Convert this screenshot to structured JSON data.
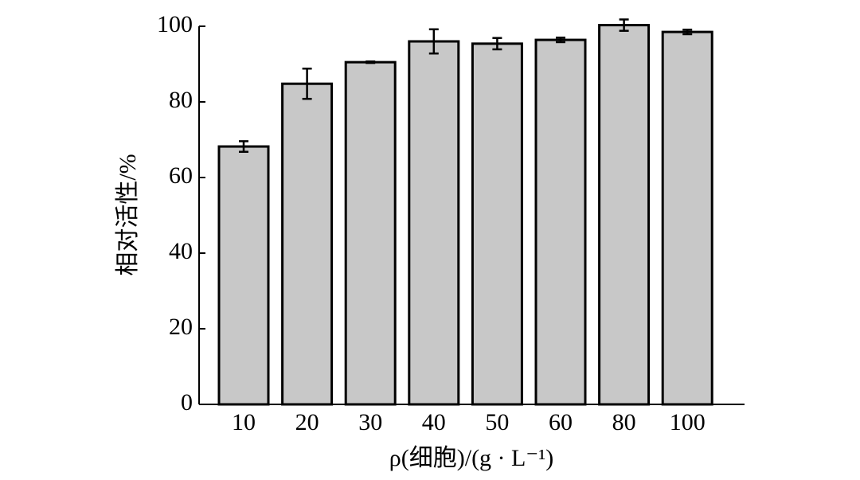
{
  "chart_data": {
    "type": "bar",
    "x_label": "ρ(细胞)/(g · L⁻¹)",
    "y_label": "相对活性/%",
    "categories": [
      "10",
      "20",
      "30",
      "40",
      "50",
      "60",
      "80",
      "100"
    ],
    "values": [
      68.2,
      84.8,
      90.5,
      96,
      95.4,
      96.4,
      100.3,
      98.5
    ],
    "errors": [
      1.4,
      4,
      0.2,
      3.2,
      1.5,
      0.6,
      1.5,
      0.6
    ],
    "color": "#c8c8c8",
    "ylim": [
      0,
      100
    ],
    "yticks": [
      0,
      20,
      40,
      60,
      80,
      100
    ]
  }
}
